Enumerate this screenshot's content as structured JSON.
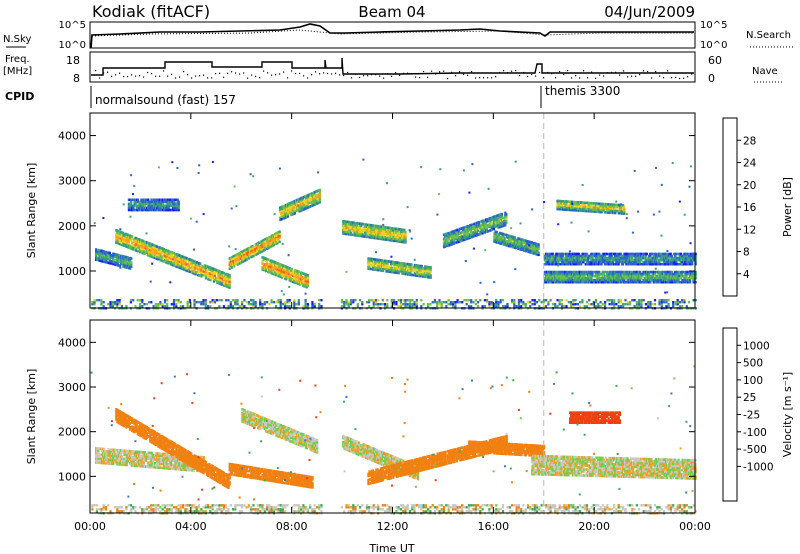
{
  "header": {
    "station": "Kodiak (fitACF)",
    "beam": "Beam 04",
    "date": "04/Jun/2009"
  },
  "top_panels": {
    "nsky": {
      "label": "N.Sky",
      "ticks": [
        "10^5",
        "10^0"
      ]
    },
    "nsearch": {
      "label": "N.Search",
      "ticks": [
        "10^5",
        "10^0"
      ]
    },
    "freq": {
      "label_line1": "Freq.",
      "label_line2": "[MHz]",
      "ticks": [
        "18",
        "8"
      ]
    },
    "nave": {
      "label": "Nave",
      "ticks": [
        "60",
        "0"
      ]
    },
    "cpid": {
      "label": "CPID",
      "segments": [
        {
          "name": "normalsound (fast) 157",
          "start": 0
        },
        {
          "name": "themis 3300",
          "start": 18
        }
      ]
    }
  },
  "colors": {
    "grid_dash": "#bbbbbb",
    "no_data": "#ffffff"
  },
  "chart_data": [
    {
      "type": "heatmap",
      "title": "",
      "xlabel": "Time UT",
      "ylabel": "Slant Range [km]",
      "x_ticks": [
        "00:00",
        "04:00",
        "08:00",
        "12:00",
        "16:00",
        "20:00",
        "00:00"
      ],
      "xlim": [
        0,
        24
      ],
      "y_ticks": [
        "1000",
        "2000",
        "3000",
        "4000"
      ],
      "ylim": [
        180,
        4500
      ],
      "colorbar": {
        "label": "Power [dB]",
        "ticks": [
          "4",
          "8",
          "12",
          "16",
          "20",
          "24",
          "28"
        ],
        "range": [
          0,
          30
        ],
        "colors": [
          "#1a1aff",
          "#2a64c8",
          "#3aa07e",
          "#6cc04a",
          "#f0d020",
          "#f5a020",
          "#f06018",
          "#f00000"
        ]
      },
      "data_gap_hours": [
        9.2,
        9.9
      ],
      "bands": [
        {
          "t0": 0.2,
          "t1": 1.6,
          "r0": 1400,
          "r1": 1200,
          "w": 120,
          "v": 12
        },
        {
          "t0": 1.0,
          "t1": 5.5,
          "r0": 1800,
          "r1": 800,
          "w": 140,
          "v": 22
        },
        {
          "t0": 5.5,
          "t1": 7.5,
          "r0": 1200,
          "r1": 1800,
          "w": 120,
          "v": 24
        },
        {
          "t0": 6.8,
          "t1": 8.6,
          "r0": 1200,
          "r1": 800,
          "w": 140,
          "v": 24
        },
        {
          "t0": 7.5,
          "t1": 9.1,
          "r0": 2300,
          "r1": 2700,
          "w": 140,
          "v": 20
        },
        {
          "t0": 1.5,
          "t1": 3.5,
          "r0": 2500,
          "r1": 2500,
          "w": 120,
          "v": 10
        },
        {
          "t0": 10.0,
          "t1": 12.5,
          "r0": 2000,
          "r1": 1800,
          "w": 140,
          "v": 20
        },
        {
          "t0": 11.0,
          "t1": 13.5,
          "r0": 1200,
          "r1": 1000,
          "w": 120,
          "v": 18
        },
        {
          "t0": 14.0,
          "t1": 16.5,
          "r0": 1700,
          "r1": 2200,
          "w": 140,
          "v": 14
        },
        {
          "t0": 16.0,
          "t1": 17.8,
          "r0": 1800,
          "r1": 1500,
          "w": 120,
          "v": 14
        },
        {
          "t0": 18.5,
          "t1": 21.2,
          "r0": 2500,
          "r1": 2400,
          "w": 100,
          "v": 18
        },
        {
          "t0": 18.0,
          "t1": 24.0,
          "r0": 1300,
          "r1": 1300,
          "w": 120,
          "v": 10
        },
        {
          "t0": 18.0,
          "t1": 24.0,
          "r0": 900,
          "r1": 900,
          "w": 120,
          "v": 13
        }
      ]
    },
    {
      "type": "heatmap",
      "title": "",
      "xlabel": "Time UT",
      "ylabel": "Slant Range [km]",
      "x_ticks": [
        "00:00",
        "04:00",
        "08:00",
        "12:00",
        "16:00",
        "20:00",
        "00:00"
      ],
      "xlim": [
        0,
        24
      ],
      "y_ticks": [
        "1000",
        "2000",
        "3000",
        "4000"
      ],
      "ylim": [
        180,
        4500
      ],
      "colorbar": {
        "label": "Velocity [m s⁻¹]",
        "ticks": [
          "1000",
          "500",
          "100",
          "25",
          "-25",
          "-100",
          "-500",
          "-1000"
        ],
        "colors": [
          "#1f3cc8",
          "#3c78c8",
          "#3caa50",
          "#6cd04a",
          "#c8c8c0",
          "#c8c8c0",
          "#f5a020",
          "#f08010",
          "#f04010",
          "#f00000"
        ]
      },
      "data_gap_hours": [
        9.2,
        9.9
      ],
      "bands": [
        {
          "t0": 0.2,
          "t1": 4.5,
          "r0": 1500,
          "r1": 1300,
          "w": 160,
          "v": 0
        },
        {
          "t0": 1.0,
          "t1": 5.5,
          "r0": 2400,
          "r1": 900,
          "w": 140,
          "v": -300
        },
        {
          "t0": 5.5,
          "t1": 8.8,
          "r0": 1200,
          "r1": 900,
          "w": 120,
          "v": -300
        },
        {
          "t0": 6.0,
          "t1": 9.0,
          "r0": 2400,
          "r1": 1700,
          "w": 140,
          "v": 0
        },
        {
          "t0": 10.0,
          "t1": 13.0,
          "r0": 1800,
          "r1": 1100,
          "w": 140,
          "v": 0
        },
        {
          "t0": 11.0,
          "t1": 16.5,
          "r0": 1000,
          "r1": 1800,
          "w": 140,
          "v": -300
        },
        {
          "t0": 15.0,
          "t1": 18.0,
          "r0": 1700,
          "r1": 1600,
          "w": 120,
          "v": -250
        },
        {
          "t0": 19.0,
          "t1": 21.0,
          "r0": 2350,
          "r1": 2350,
          "w": 120,
          "v": -600
        },
        {
          "t0": 17.5,
          "t1": 24.0,
          "r0": 1300,
          "r1": 1200,
          "w": 220,
          "v": 0
        }
      ]
    }
  ]
}
